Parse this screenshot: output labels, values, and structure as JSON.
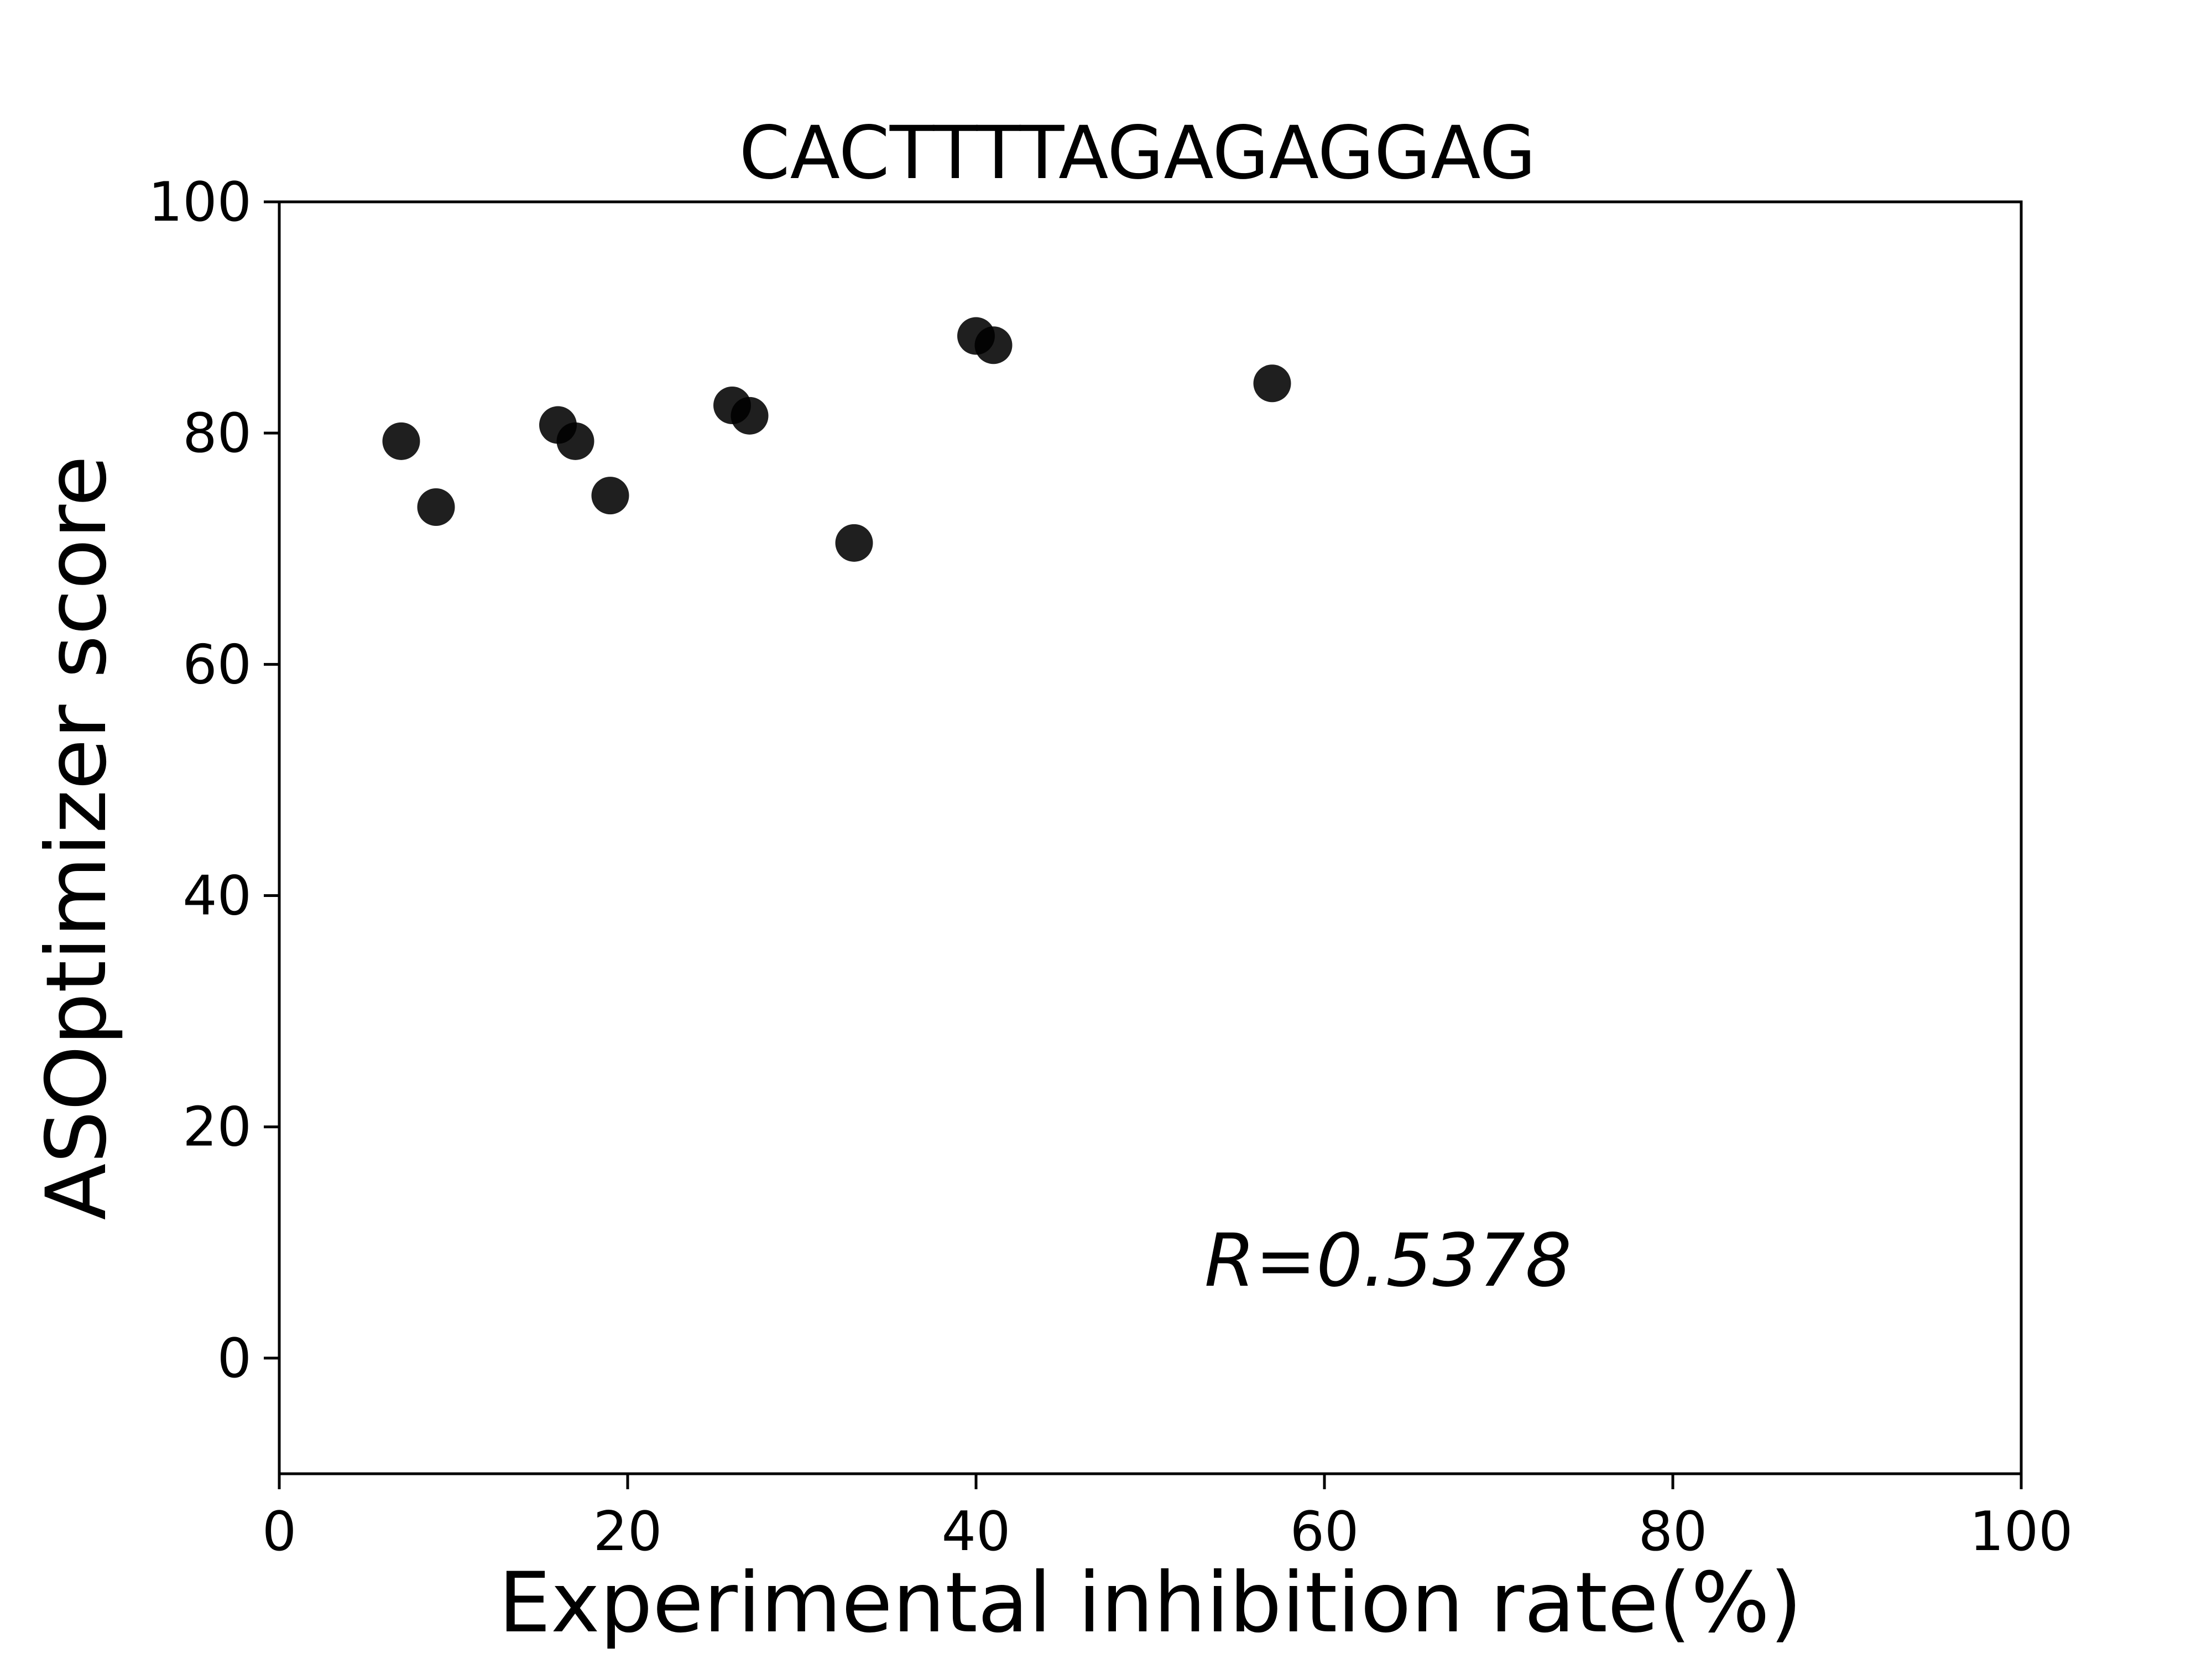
{
  "chart_data": {
    "type": "scatter",
    "title": "CACTTTTAGAGAGGAG",
    "xlabel": "Experimental inhibition rate(%)",
    "ylabel": "ASOptimizer score",
    "xlim": [
      0,
      100
    ],
    "ylim": [
      -10,
      100
    ],
    "xticks": [
      0,
      20,
      40,
      60,
      80,
      100
    ],
    "yticks": [
      0,
      20,
      40,
      60,
      80,
      100
    ],
    "grid": false,
    "annotation": "R=0.5378",
    "marker_color": "#000000",
    "series": [
      {
        "points": [
          {
            "x": 7,
            "y": 79.3
          },
          {
            "x": 9,
            "y": 73.6
          },
          {
            "x": 16,
            "y": 80.7
          },
          {
            "x": 17,
            "y": 79.3
          },
          {
            "x": 19,
            "y": 74.6
          },
          {
            "x": 26,
            "y": 82.4
          },
          {
            "x": 27,
            "y": 81.5
          },
          {
            "x": 33,
            "y": 70.5
          },
          {
            "x": 40,
            "y": 88.4
          },
          {
            "x": 41,
            "y": 87.6
          },
          {
            "x": 57,
            "y": 84.3
          }
        ]
      }
    ]
  }
}
